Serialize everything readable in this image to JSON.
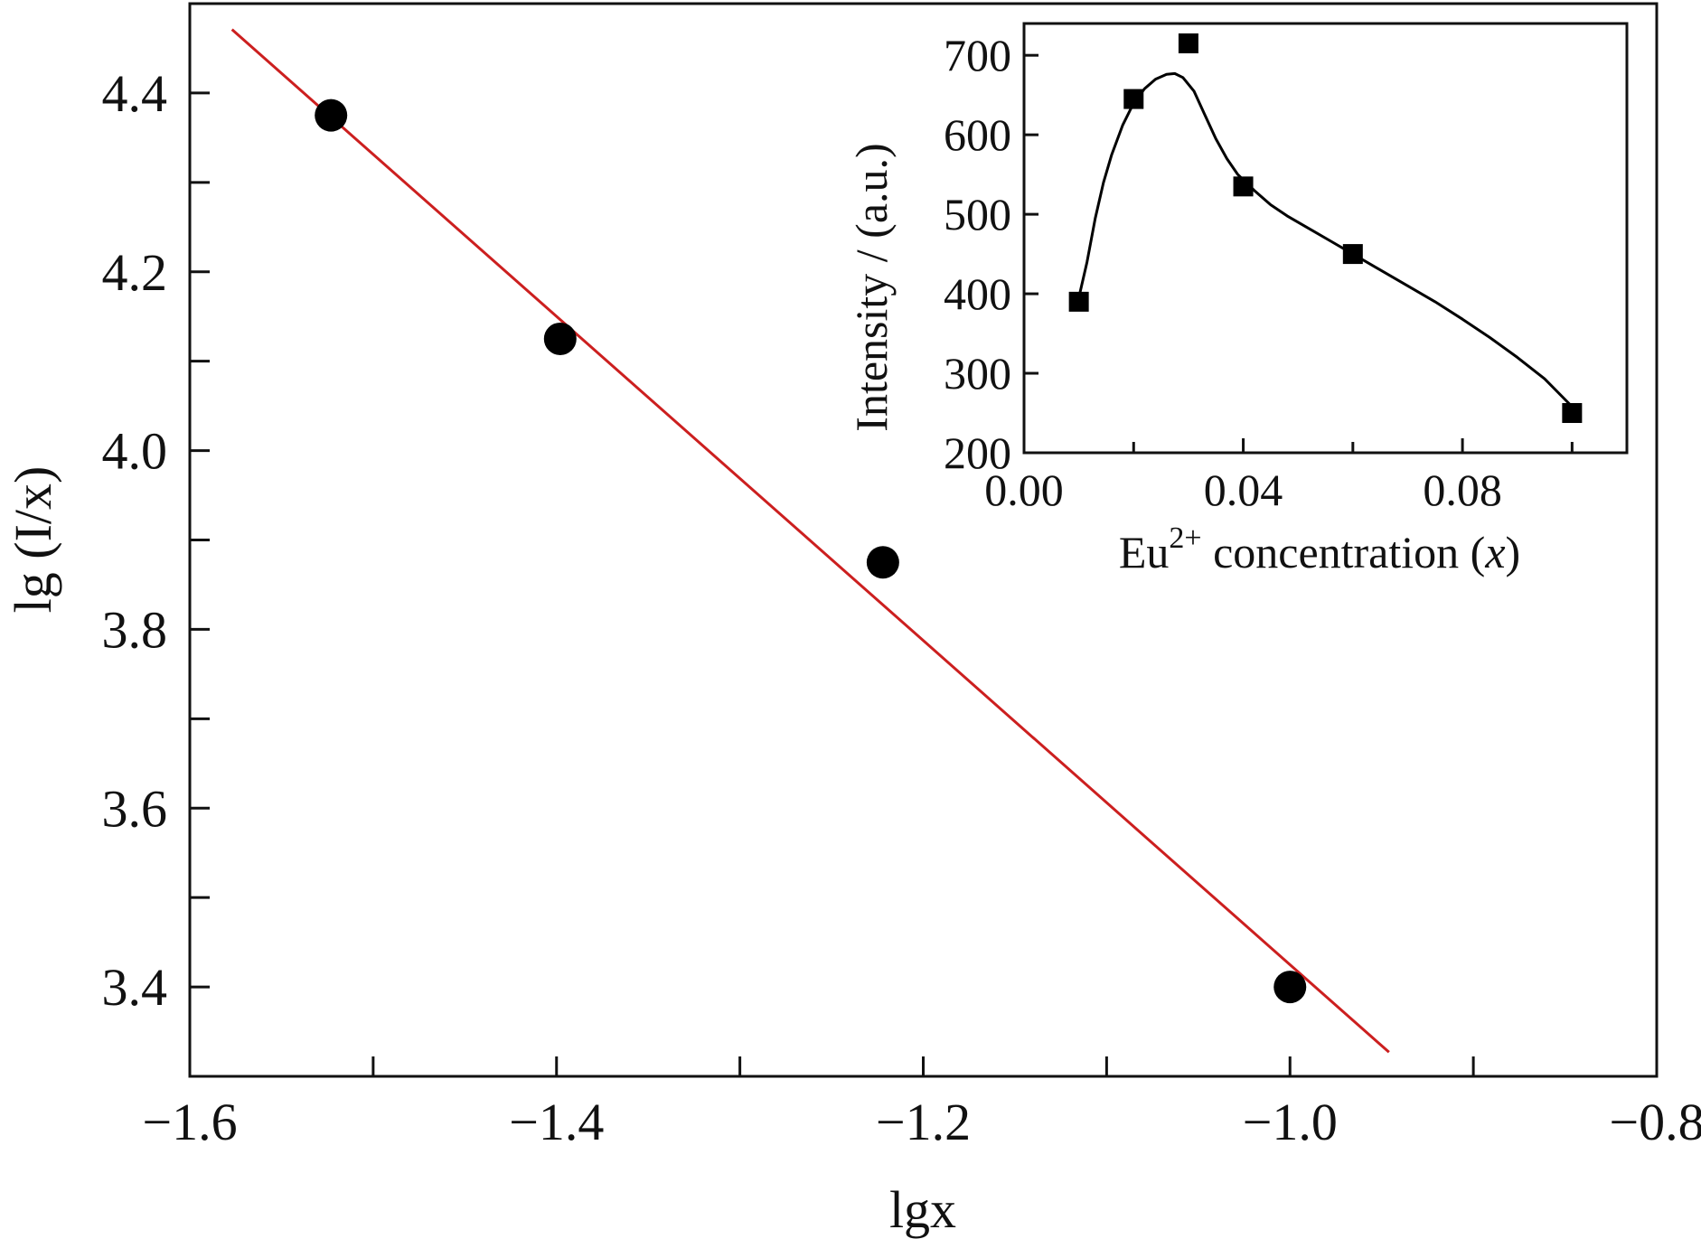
{
  "chart_data": [
    {
      "type": "scatter",
      "xlabel": "lgx",
      "ylabel": "lg (I/x)",
      "xlim": [
        -1.6,
        -0.8
      ],
      "ylim": [
        3.3,
        4.5
      ],
      "x_ticks": [
        -1.6,
        -1.4,
        -1.2,
        -1.0,
        -0.8
      ],
      "x_tick_labels": [
        "−1.6",
        "−1.4",
        "−1.2",
        "−1.0",
        "−0.8"
      ],
      "x_minor_step": 0.1,
      "y_ticks": [
        3.4,
        3.6,
        3.8,
        4.0,
        4.2,
        4.4
      ],
      "y_tick_labels": [
        "3.4",
        "3.6",
        "3.8",
        "4.0",
        "4.2",
        "4.4"
      ],
      "y_minor_step": 0.1,
      "grid": false,
      "series": [
        {
          "kind": "points",
          "marker": "circle",
          "color": "#000000",
          "x": [
            -1.523,
            -1.398,
            -1.222,
            -1.0
          ],
          "y": [
            4.375,
            4.125,
            3.875,
            3.4
          ]
        },
        {
          "kind": "fit-line",
          "color": "#cc1f1f",
          "x": [
            -1.577,
            -0.946
          ],
          "y": [
            4.471,
            3.327
          ]
        }
      ]
    },
    {
      "type": "line",
      "inset": true,
      "xlabel_base": "Eu",
      "xlabel_sup": "2+",
      "xlabel_rest": " concentration (",
      "xlabel_var": "x",
      "xlabel_end": ")",
      "ylabel": "Intensity / (a.u.)",
      "xlim": [
        0.0,
        0.11
      ],
      "ylim": [
        200,
        740
      ],
      "x_ticks": [
        0.0,
        0.04,
        0.08
      ],
      "x_tick_labels": [
        "0.00",
        "0.04",
        "0.08"
      ],
      "x_minor_step": 0.02,
      "y_ticks": [
        200,
        300,
        400,
        500,
        600,
        700
      ],
      "y_tick_labels": [
        "200",
        "300",
        "400",
        "500",
        "600",
        "700"
      ],
      "grid": false,
      "series": [
        {
          "kind": "points",
          "marker": "square",
          "color": "#000000",
          "x": [
            0.01,
            0.02,
            0.03,
            0.04,
            0.06,
            0.1
          ],
          "y": [
            390,
            645,
            715,
            535,
            450,
            250
          ]
        },
        {
          "kind": "smooth-curve",
          "color": "#000000",
          "x": [
            0.01,
            0.0115,
            0.013,
            0.0145,
            0.016,
            0.018,
            0.02,
            0.022,
            0.024,
            0.026,
            0.0275,
            0.029,
            0.031,
            0.033,
            0.035,
            0.037,
            0.039,
            0.042,
            0.045,
            0.048,
            0.052,
            0.056,
            0.06,
            0.065,
            0.07,
            0.075,
            0.08,
            0.085,
            0.09,
            0.095,
            0.1
          ],
          "y": [
            395,
            440,
            495,
            540,
            575,
            612,
            640,
            658,
            670,
            676,
            677,
            672,
            655,
            625,
            595,
            570,
            550,
            530,
            512,
            498,
            482,
            466,
            450,
            430,
            410,
            390,
            368,
            345,
            320,
            293,
            258
          ]
        }
      ]
    }
  ]
}
